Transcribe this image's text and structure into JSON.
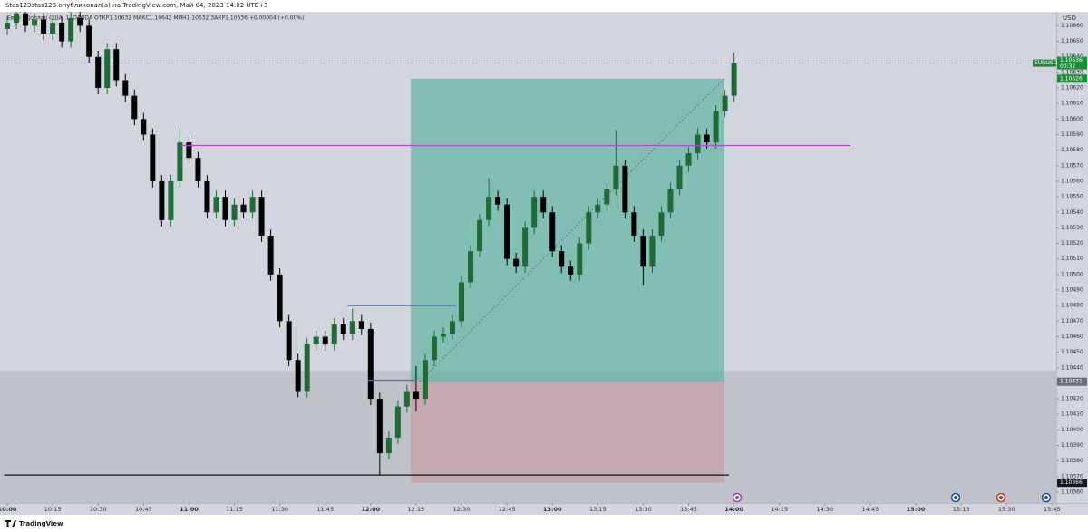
{
  "header": {
    "title": "Stas123stas123 опубликовал(а) на TradingView.com, Май 04, 2023 14:02 UTC+3",
    "legend": "Евро / Доллар США, 1, OANDA  ОТКР1.10632  МАКС1.10642  МИН1.10632  ЗАКР1.10636  +0.00004 (+0.00%)"
  },
  "footer": {
    "brand": "TradingView"
  },
  "chart_data": {
    "type": "candlestick",
    "currency": "USD",
    "symbol": "EURUSD",
    "last_price": 1.10636,
    "countdown": "00:32",
    "up_color": "#1f6b35",
    "down_color": "#000000",
    "x": [
      "10:00",
      "10:03",
      "10:06",
      "10:09",
      "10:12",
      "10:15",
      "10:18",
      "10:21",
      "10:24",
      "10:27",
      "10:30",
      "10:33",
      "10:36",
      "10:39",
      "10:42",
      "10:45",
      "10:48",
      "10:51",
      "10:54",
      "10:57",
      "11:00",
      "11:03",
      "11:06",
      "11:09",
      "11:12",
      "11:15",
      "11:18",
      "11:21",
      "11:24",
      "11:27",
      "11:30",
      "11:33",
      "11:36",
      "11:39",
      "11:42",
      "11:45",
      "11:48",
      "11:51",
      "11:54",
      "11:57",
      "12:00",
      "12:03",
      "12:06",
      "12:09",
      "12:12",
      "12:15",
      "12:18",
      "12:21",
      "12:24",
      "12:27",
      "12:30",
      "12:33",
      "12:36",
      "12:39",
      "12:42",
      "12:45",
      "12:48",
      "12:51",
      "12:54",
      "12:57",
      "13:00",
      "13:03",
      "13:06",
      "13:09",
      "13:12",
      "13:15",
      "13:18",
      "13:21",
      "13:24",
      "13:27",
      "13:30",
      "13:33",
      "13:36",
      "13:39",
      "13:42",
      "13:45",
      "13:48",
      "13:51",
      "13:54",
      "13:57",
      "14:00"
    ],
    "open": [
      1.10658,
      1.10662,
      1.10668,
      1.1066,
      1.10664,
      1.10655,
      1.10662,
      1.1065,
      1.10665,
      1.1066,
      1.1064,
      1.1062,
      1.10645,
      1.10625,
      1.10615,
      1.106,
      1.1059,
      1.1056,
      1.10535,
      1.1056,
      1.10585,
      1.10575,
      1.1056,
      1.1054,
      1.1055,
      1.10535,
      1.10545,
      1.1054,
      1.1055,
      1.10525,
      1.105,
      1.1047,
      1.10445,
      1.10425,
      1.10455,
      1.1046,
      1.10455,
      1.10468,
      1.10462,
      1.1047,
      1.10465,
      1.1042,
      1.10385,
      1.10395,
      1.10415,
      1.10425,
      1.1042,
      1.10445,
      1.1046,
      1.10462,
      1.1047,
      1.10495,
      1.10515,
      1.10535,
      1.1055,
      1.10545,
      1.1051,
      1.10505,
      1.1053,
      1.1055,
      1.1054,
      1.10515,
      1.10505,
      1.105,
      1.1052,
      1.1054,
      1.10545,
      1.10555,
      1.1057,
      1.1054,
      1.10525,
      1.10505,
      1.10525,
      1.1054,
      1.10555,
      1.1057,
      1.10578,
      1.1059,
      1.10585,
      1.10605,
      1.10615
    ],
    "high": [
      1.10666,
      1.10672,
      1.10672,
      1.10668,
      1.10668,
      1.10666,
      1.10666,
      1.10669,
      1.10669,
      1.10664,
      1.10644,
      1.10649,
      1.10649,
      1.10629,
      1.10619,
      1.10604,
      1.10594,
      1.10564,
      1.10564,
      1.10594,
      1.10589,
      1.10579,
      1.10564,
      1.10554,
      1.10554,
      1.10549,
      1.10549,
      1.10554,
      1.10554,
      1.10529,
      1.10504,
      1.10474,
      1.10449,
      1.10459,
      1.10464,
      1.10464,
      1.10472,
      1.10472,
      1.10478,
      1.10474,
      1.10469,
      1.10424,
      1.10399,
      1.10419,
      1.10429,
      1.10441,
      1.10449,
      1.10464,
      1.10466,
      1.10474,
      1.10499,
      1.10519,
      1.10539,
      1.10562,
      1.10554,
      1.10549,
      1.10514,
      1.10534,
      1.10554,
      1.10554,
      1.10544,
      1.10519,
      1.10509,
      1.10524,
      1.10544,
      1.10549,
      1.10559,
      1.10593,
      1.10574,
      1.10544,
      1.10529,
      1.10529,
      1.10544,
      1.10559,
      1.10574,
      1.10582,
      1.10594,
      1.10594,
      1.10609,
      1.10619,
      1.10643
    ],
    "low": [
      1.10654,
      1.10658,
      1.10656,
      1.10656,
      1.10651,
      1.10651,
      1.10646,
      1.10646,
      1.10656,
      1.10636,
      1.10616,
      1.10616,
      1.10621,
      1.10611,
      1.10596,
      1.10586,
      1.10556,
      1.10531,
      1.10531,
      1.10556,
      1.10571,
      1.10556,
      1.10536,
      1.10536,
      1.10531,
      1.10531,
      1.10536,
      1.10536,
      1.10521,
      1.10496,
      1.10466,
      1.10441,
      1.10421,
      1.10421,
      1.10451,
      1.10451,
      1.10451,
      1.10458,
      1.10458,
      1.10461,
      1.10416,
      1.10371,
      1.10381,
      1.10391,
      1.10411,
      1.10412,
      1.10416,
      1.10441,
      1.10456,
      1.10458,
      1.10466,
      1.10491,
      1.10511,
      1.10531,
      1.10541,
      1.10506,
      1.10501,
      1.10501,
      1.10526,
      1.10536,
      1.10511,
      1.10501,
      1.10496,
      1.10496,
      1.10516,
      1.10536,
      1.10541,
      1.10551,
      1.10536,
      1.10521,
      1.10493,
      1.10501,
      1.10521,
      1.10536,
      1.10551,
      1.10566,
      1.10574,
      1.10581,
      1.10581,
      1.10601,
      1.10611
    ],
    "close": [
      1.10662,
      1.10668,
      1.1066,
      1.10664,
      1.10655,
      1.10662,
      1.1065,
      1.10665,
      1.1066,
      1.1064,
      1.1062,
      1.10645,
      1.10625,
      1.10615,
      1.106,
      1.1059,
      1.1056,
      1.10535,
      1.1056,
      1.10585,
      1.10575,
      1.1056,
      1.1054,
      1.1055,
      1.10535,
      1.10545,
      1.1054,
      1.1055,
      1.10525,
      1.105,
      1.1047,
      1.10445,
      1.10425,
      1.10455,
      1.1046,
      1.10455,
      1.10468,
      1.10462,
      1.1047,
      1.10465,
      1.1042,
      1.10385,
      1.10395,
      1.10415,
      1.10425,
      1.1042,
      1.10445,
      1.1046,
      1.10462,
      1.1047,
      1.10495,
      1.10515,
      1.10535,
      1.1055,
      1.10545,
      1.1051,
      1.10505,
      1.1053,
      1.1055,
      1.1054,
      1.10515,
      1.10505,
      1.105,
      1.1052,
      1.1054,
      1.10545,
      1.10555,
      1.1057,
      1.1054,
      1.10525,
      1.10505,
      1.10525,
      1.1054,
      1.10555,
      1.1057,
      1.10578,
      1.1059,
      1.10585,
      1.10605,
      1.10615,
      1.10636
    ],
    "xlim": [
      "09:57:36",
      "15:46:24"
    ],
    "xticks": [
      "10:00",
      "10:15",
      "10:30",
      "10:45",
      "11:00",
      "11:15",
      "11:30",
      "11:45",
      "12:00",
      "12:15",
      "12:30",
      "12:45",
      "13:00",
      "13:15",
      "13:30",
      "13:45",
      "14:00",
      "14:15",
      "14:30",
      "14:45",
      "15:00",
      "15:15",
      "15:30",
      "15:45"
    ],
    "ylim": [
      1.10353,
      1.10669
    ],
    "yticks": [
      {
        "value": 1.1036,
        "label": "1.10360"
      },
      {
        "value": 1.1037,
        "label": "1.10370"
      },
      {
        "value": 1.1038,
        "label": "1.10380"
      },
      {
        "value": 1.1039,
        "label": "1.10390"
      },
      {
        "value": 1.104,
        "label": "1.10400"
      },
      {
        "value": 1.1041,
        "label": "1.10410"
      },
      {
        "value": 1.1042,
        "label": "1.10420"
      },
      {
        "value": 1.1043,
        "label": "1.10430"
      },
      {
        "value": 1.1044,
        "label": "1.10440"
      },
      {
        "value": 1.1045,
        "label": "1.10450"
      },
      {
        "value": 1.1046,
        "label": "1.10460"
      },
      {
        "value": 1.1047,
        "label": "1.10470"
      },
      {
        "value": 1.1048,
        "label": "1.10480"
      },
      {
        "value": 1.1049,
        "label": "1.10490"
      },
      {
        "value": 1.105,
        "label": "1.10500"
      },
      {
        "value": 1.1051,
        "label": "1.10510"
      },
      {
        "value": 1.1052,
        "label": "1.10520"
      },
      {
        "value": 1.1053,
        "label": "1.10530"
      },
      {
        "value": 1.1054,
        "label": "1.10540"
      },
      {
        "value": 1.1055,
        "label": "1.10550"
      },
      {
        "value": 1.1056,
        "label": "1.10560"
      },
      {
        "value": 1.1057,
        "label": "1.10570"
      },
      {
        "value": 1.1058,
        "label": "1.10580"
      },
      {
        "value": 1.1059,
        "label": "1.10590"
      },
      {
        "value": 1.106,
        "label": "1.10600"
      },
      {
        "value": 1.1061,
        "label": "1.10610"
      },
      {
        "value": 1.1062,
        "label": "1.10620"
      },
      {
        "value": 1.1063,
        "label": "1.10630"
      },
      {
        "value": 1.1064,
        "label": "1.10640"
      },
      {
        "value": 1.1065,
        "label": "1.10650"
      },
      {
        "value": 1.1066,
        "label": "1.10660"
      }
    ],
    "zone": {
      "top": 1.10438,
      "color": "#b9bbc2"
    },
    "position": {
      "entry": 1.10431,
      "target": 1.10626,
      "stop": 1.10366,
      "start": "12:13:12",
      "end": "13:56:48",
      "profit_color": "#5fb3a3",
      "loss_color": "#c79ca4"
    },
    "lines": [
      {
        "price": 1.10583,
        "start": "10:57:30",
        "end": "14:38:24",
        "color": "#b04cc8"
      },
      {
        "price": 1.1048,
        "start": "11:52:18",
        "end": "12:28:12",
        "color": "#3d6fe8"
      },
      {
        "price": 1.10432,
        "start": "11:59:12",
        "end": "12:15:18",
        "color": "#3d6fe8"
      },
      {
        "price": 1.10371,
        "start": "09:59:00",
        "end": "13:58:18",
        "color": "#111111"
      }
    ]
  }
}
